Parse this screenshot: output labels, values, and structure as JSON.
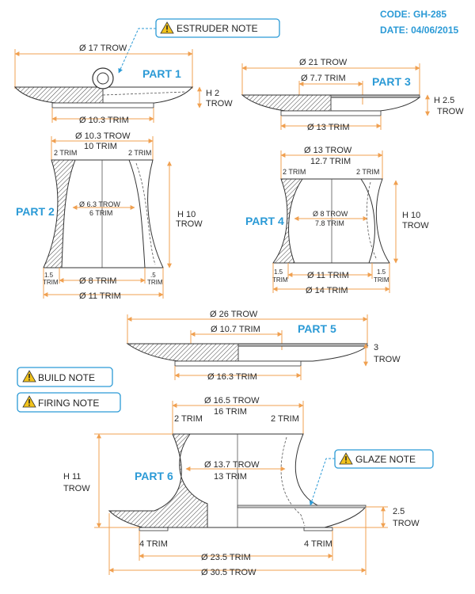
{
  "header": {
    "code": "CODE: GH-285",
    "date": "DATE: 04/06/2015"
  },
  "notes": {
    "estruder": "ESTRUDER NOTE",
    "build": "BUILD NOTE",
    "firing": "FIRING NOTE",
    "glaze": "GLAZE NOTE"
  },
  "part1": {
    "label": "PART 1",
    "top_dia": "Ø 17 TROW",
    "height_a": "H 2",
    "height_b": "TROW",
    "bottom_dia": "Ø 10.3 TRIM"
  },
  "part2": {
    "label": "PART 2",
    "top_a": "Ø 10.3 TROW",
    "top_b": "10 TRIM",
    "left_rim": "2 TRIM",
    "right_rim": "2 TRIM",
    "mid_a": "Ø 6.3 TROW",
    "mid_b": "6 TRIM",
    "height_a": "H 10",
    "height_b": "TROW",
    "foot_l_a": "1.5",
    "foot_l_b": "TRIM",
    "foot_r_a": ".5",
    "foot_r_b": "TRIM",
    "base_a": "Ø 8 TRIM",
    "base_b": "Ø 11 TRIM"
  },
  "part3": {
    "label": "PART 3",
    "top_a": "Ø 21 TROW",
    "top_b": "Ø 7.7 TRIM",
    "height_a": "H 2.5",
    "height_b": "TROW",
    "bottom_dia": "Ø 13 TRIM"
  },
  "part4": {
    "label": "PART 4",
    "top_a": "Ø 13 TROW",
    "top_b": "12.7 TRIM",
    "left_rim": "2 TRIM",
    "right_rim": "2 TRIM",
    "mid_a": "Ø 8 TROW",
    "mid_b": "7.8 TRIM",
    "height_a": "H 10",
    "height_b": "TROW",
    "foot_l_a": "1.5",
    "foot_l_b": "TRIM",
    "foot_r_a": "1.5",
    "foot_r_b": "TRIM",
    "base_a": "Ø 11 TRIM",
    "base_b": "Ø 14 TRIM"
  },
  "part5": {
    "label": "PART 5",
    "top_a": "Ø 26 TROW",
    "top_b": "Ø 10.7 TRIM",
    "height_a": "3",
    "height_b": "TROW",
    "bottom_dia": "Ø 16.3 TRIM"
  },
  "part6": {
    "label": "PART 6",
    "top_a": "Ø 16.5 TROW",
    "top_b": "16 TRIM",
    "left_rim": "2 TRIM",
    "right_rim": "2 TRIM",
    "mid_a": "Ø 13.7 TROW",
    "mid_b": "13 TRIM",
    "height_a": "H 11",
    "height_b": "TROW",
    "rim_h_a": "2.5",
    "rim_h_b": "TROW",
    "foot_l": "4 TRIM",
    "foot_r": "4 TRIM",
    "base_a": "Ø 23.5 TRIM",
    "base_b": "Ø 30.5 TROW"
  }
}
